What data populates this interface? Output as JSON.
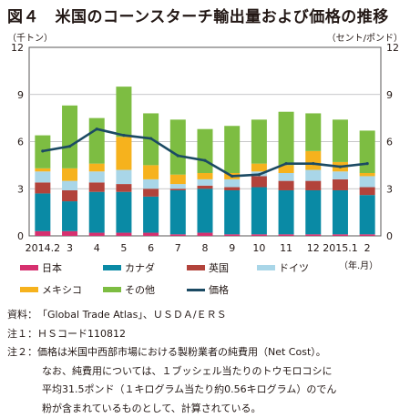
{
  "title": "図４　米国のコーンスターチ輸出量および価格の推移",
  "left_unit": "（千トン）",
  "right_unit": "（セント/ポンド）",
  "x_unit": "（年.月）",
  "colors": {
    "日本": "#d6306f",
    "カナダ": "#0a8aa5",
    "英国": "#b2433b",
    "ドイツ": "#a9d6e8",
    "メキシコ": "#f6b21d",
    "その他": "#7dbd42",
    "価格": "#1b4a63"
  },
  "chart_data": {
    "type": "bar",
    "stacked": true,
    "categories": [
      "2014.2",
      "3",
      "4",
      "5",
      "6",
      "7",
      "8",
      "9",
      "10",
      "11",
      "12",
      "2015.1",
      "2"
    ],
    "ylim": [
      0,
      12
    ],
    "yticks": [
      0,
      3,
      6,
      9,
      12
    ],
    "y2lim": [
      0,
      12
    ],
    "y2ticks": [
      0,
      3,
      6,
      9,
      12
    ],
    "grid": true,
    "legend_position": "bottom",
    "series": [
      {
        "name": "日本",
        "values": [
          0.3,
          0.3,
          0.2,
          0.2,
          0.2,
          0.1,
          0.2,
          0.1,
          0.1,
          0.1,
          0.1,
          0.1,
          0.1
        ]
      },
      {
        "name": "カナダ",
        "values": [
          2.4,
          1.9,
          2.6,
          2.6,
          2.3,
          2.8,
          2.8,
          2.8,
          3.0,
          2.8,
          2.8,
          2.8,
          2.5
        ]
      },
      {
        "name": "英国",
        "values": [
          0.7,
          0.7,
          0.6,
          0.5,
          0.5,
          0.1,
          0.2,
          0.2,
          0.7,
          0.6,
          0.6,
          0.7,
          0.5
        ]
      },
      {
        "name": "ドイツ",
        "values": [
          0.7,
          0.6,
          0.7,
          0.9,
          0.6,
          0.3,
          0.4,
          0.5,
          0.3,
          0.5,
          0.7,
          0.5,
          0.7
        ]
      },
      {
        "name": "メキシコ",
        "values": [
          0.2,
          0.8,
          0.5,
          2.1,
          0.9,
          0.6,
          0.4,
          0.4,
          0.5,
          0.5,
          1.2,
          0.6,
          0.2
        ]
      },
      {
        "name": "その他",
        "values": [
          2.1,
          4.0,
          2.9,
          3.2,
          3.3,
          3.5,
          2.8,
          3.0,
          2.8,
          3.4,
          2.4,
          2.7,
          2.7
        ]
      }
    ],
    "line": {
      "name": "価格",
      "axis": "right",
      "values": [
        5.4,
        5.7,
        6.8,
        6.4,
        6.2,
        5.1,
        4.8,
        3.8,
        3.9,
        4.6,
        4.6,
        4.4,
        4.6
      ]
    }
  },
  "notes": [
    {
      "label": "資料：",
      "text": "「Global Trade Atlas」、ＵＳＤＡ/ＥＲＳ"
    },
    {
      "label": "注１：",
      "text": "ＨＳコード110812"
    },
    {
      "label": "注２：",
      "text": "価格は米国中西部市場における製粉業者の純費用（Net Cost）。"
    }
  ],
  "note_cont": [
    "なお、純費用については、１ブッシェル当たりのトウモロコシに",
    "平均31.5ポンド（１キログラム当たり約0.56キログラム）のでん",
    "粉が含まれているものとして、計算されている。"
  ]
}
